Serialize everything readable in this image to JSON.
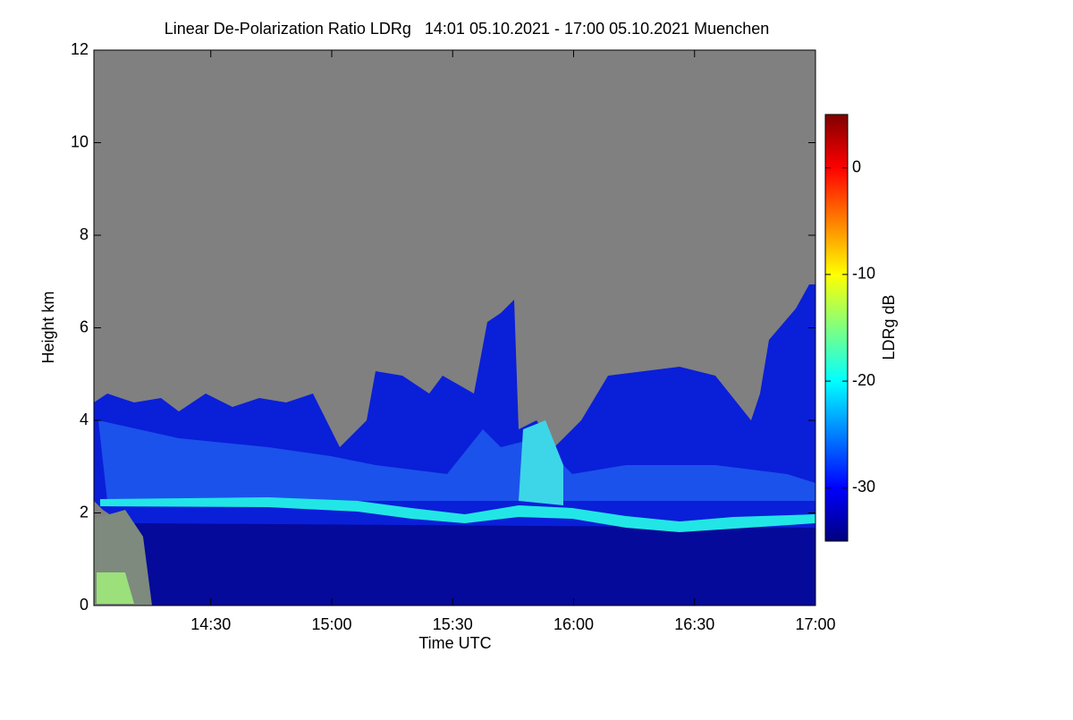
{
  "chart_data": {
    "type": "heatmap",
    "title": "Linear De-Polarization Ratio LDRg   14:01 05.10.2021 - 17:00 05.10.2021 Muenchen",
    "xlabel": "Time UTC",
    "ylabel": "Height km",
    "xlim": [
      14.0167,
      17
    ],
    "xticks": [
      {
        "value": 14.5,
        "label": "14:30"
      },
      {
        "value": 15,
        "label": "15:00"
      },
      {
        "value": 15.5,
        "label": "15:30"
      },
      {
        "value": 16,
        "label": "16:00"
      },
      {
        "value": 16.5,
        "label": "16:30"
      },
      {
        "value": 17,
        "label": "17:00"
      }
    ],
    "ylim": [
      0,
      12
    ],
    "yticks": [
      0,
      2,
      4,
      6,
      8,
      10,
      12
    ],
    "colorbar": {
      "label": "LDRg dB",
      "zlim": [
        -35,
        5
      ],
      "ticks": [
        0,
        -10,
        -20,
        -30
      ],
      "colors": [
        "#00007f",
        "#0000ff",
        "#0080ff",
        "#00ffff",
        "#80ff80",
        "#ffff00",
        "#ff8000",
        "#ff0000",
        "#7f0000"
      ]
    },
    "background": "#808080"
  }
}
